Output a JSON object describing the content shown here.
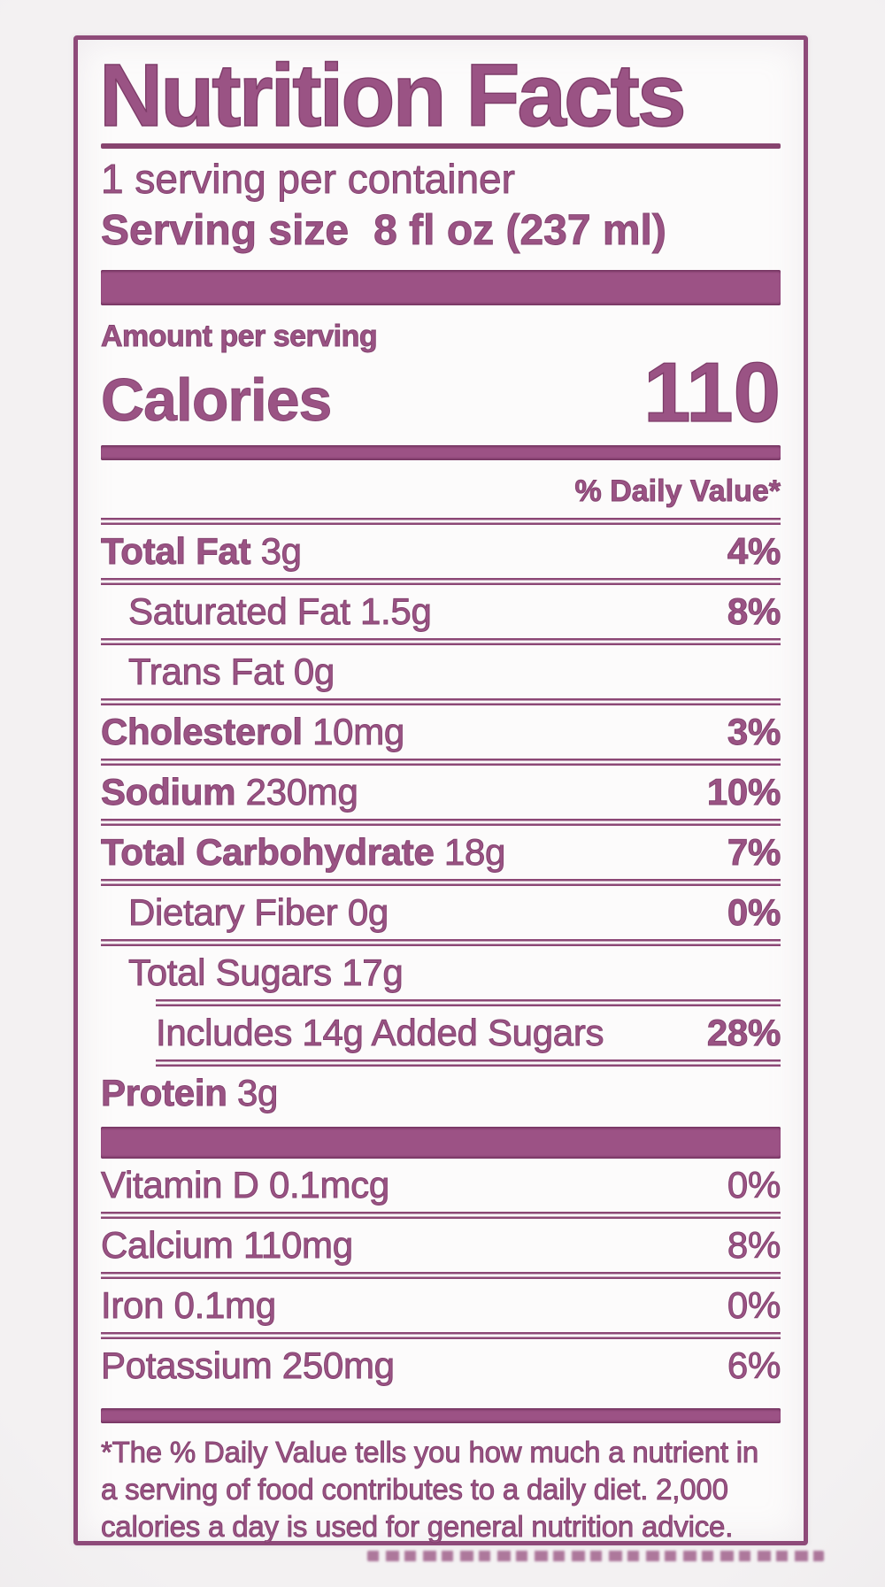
{
  "label": {
    "title": "Nutrition Facts",
    "servings_per_container": "1 serving per container",
    "serving_size_label": "Serving size",
    "serving_size_value": "8 fl oz (237 ml)",
    "amount_per_serving": "Amount per serving",
    "calories_label": "Calories",
    "calories_value": "110",
    "daily_value_header": "% Daily Value*",
    "nutrients": [
      {
        "name": "Total Fat",
        "amount": "3g",
        "dv": "4%"
      },
      {
        "name": "Saturated Fat",
        "amount": "1.5g",
        "dv": "8%"
      },
      {
        "name": "Trans Fat",
        "amount": "0g",
        "dv": ""
      },
      {
        "name": "Cholesterol",
        "amount": "10mg",
        "dv": "3%"
      },
      {
        "name": "Sodium",
        "amount": "230mg",
        "dv": "10%"
      },
      {
        "name": "Total Carbohydrate",
        "amount": "18g",
        "dv": "7%"
      },
      {
        "name": "Dietary Fiber",
        "amount": "0g",
        "dv": "0%"
      },
      {
        "name": "Total Sugars",
        "amount": "17g",
        "dv": ""
      },
      {
        "name": "Includes 14g Added Sugars",
        "amount": "",
        "dv": "28%"
      },
      {
        "name": "Protein",
        "amount": "3g",
        "dv": ""
      }
    ],
    "vitamins": [
      {
        "name": "Vitamin D",
        "amount": "0.1mcg",
        "dv": "0%"
      },
      {
        "name": "Calcium",
        "amount": "110mg",
        "dv": "8%"
      },
      {
        "name": "Iron",
        "amount": "0.1mg",
        "dv": "0%"
      },
      {
        "name": "Potassium",
        "amount": "250mg",
        "dv": "6%"
      }
    ],
    "footnote": "*The % Daily Value tells you how much a nutrient in a serving of food contributes to a daily diet. 2,000 calories a day is used for general nutrition advice.",
    "colors": {
      "plum_text": "#9a5384",
      "plum_dark": "#7e3c69",
      "bar_fill": "#9c5285",
      "page_background": "#f3f1f2",
      "label_background": "#fcfbfb"
    }
  }
}
